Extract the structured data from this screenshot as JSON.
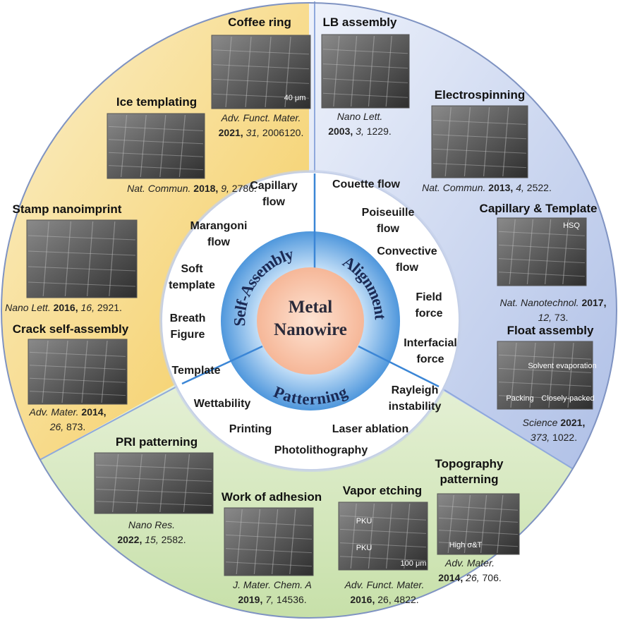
{
  "center": {
    "lines": [
      "Metal",
      "Nanowire"
    ]
  },
  "ring": {
    "self_assembly": "Self-Assembly",
    "alignment": "Alignment",
    "patterning": "Patterning"
  },
  "methods": [
    {
      "lines": [
        "Capillary",
        "flow"
      ]
    },
    {
      "lines": [
        "Couette flow"
      ]
    },
    {
      "lines": [
        "Marangoni",
        "flow"
      ]
    },
    {
      "lines": [
        "Poiseuille",
        "flow"
      ]
    },
    {
      "lines": [
        "Soft",
        "template"
      ]
    },
    {
      "lines": [
        "Convective",
        "flow"
      ]
    },
    {
      "lines": [
        "Breath",
        "Figure"
      ]
    },
    {
      "lines": [
        "Field",
        "force"
      ]
    },
    {
      "lines": [
        "Template"
      ]
    },
    {
      "lines": [
        "Interfacial",
        "force"
      ]
    },
    {
      "lines": [
        "Wettability"
      ]
    },
    {
      "lines": [
        "Rayleigh",
        "instability"
      ]
    },
    {
      "lines": [
        "Printing"
      ]
    },
    {
      "lines": [
        "Laser ablation"
      ]
    },
    {
      "lines": [
        "Photolithography"
      ]
    }
  ],
  "sections": [
    {
      "title": [
        "Coffee ring"
      ],
      "image_texts": [
        "40 μm"
      ],
      "citation": [
        [
          {
            "text": "Adv. Funct. Mater.",
            "style": "italic"
          }
        ],
        [
          {
            "text": "2021,",
            "style": "bold"
          },
          {
            "text": " 31,",
            "style": "italic"
          },
          {
            "text": " 2006120.",
            "style": "normal"
          }
        ]
      ]
    },
    {
      "title": [
        "Ice templating"
      ],
      "image_texts": [],
      "citation": [
        [
          {
            "text": "Nat. Commun.",
            "style": "italic"
          },
          {
            "text": " 2018,",
            "style": "bold"
          },
          {
            "text": " 9,",
            "style": "italic"
          },
          {
            "text": " 2786.",
            "style": "normal"
          }
        ]
      ]
    },
    {
      "title": [
        "Stamp nanoimprint"
      ],
      "image_texts": [],
      "citation": [
        [
          {
            "text": "Nano Lett.",
            "style": "italic"
          },
          {
            "text": " 2016,",
            "style": "bold"
          },
          {
            "text": " 16,",
            "style": "italic"
          },
          {
            "text": " 2921.",
            "style": "normal"
          }
        ]
      ]
    },
    {
      "title": [
        "Crack self-assembly"
      ],
      "image_texts": [],
      "citation": [
        [
          {
            "text": "Adv. Mater.",
            "style": "italic"
          },
          {
            "text": " 2014,",
            "style": "bold"
          }
        ],
        [
          {
            "text": "26,",
            "style": "italic"
          },
          {
            "text": " 873.",
            "style": "normal"
          }
        ]
      ]
    },
    {
      "title": [
        "LB assembly"
      ],
      "image_texts": [],
      "citation": [
        [
          {
            "text": "Nano Lett.",
            "style": "italic"
          }
        ],
        [
          {
            "text": "2003,",
            "style": "bold"
          },
          {
            "text": " 3,",
            "style": "italic"
          },
          {
            "text": " 1229.",
            "style": "normal"
          }
        ]
      ]
    },
    {
      "title": [
        "Electrospinning"
      ],
      "image_texts": [],
      "citation": [
        [
          {
            "text": "Nat. Commun.",
            "style": "italic"
          },
          {
            "text": " 2013,",
            "style": "bold"
          },
          {
            "text": " 4,",
            "style": "italic"
          },
          {
            "text": " 2522.",
            "style": "normal"
          }
        ]
      ]
    },
    {
      "title": [
        "Capillary & Template"
      ],
      "image_texts": [
        "HSQ"
      ],
      "citation": [
        [
          {
            "text": "Nat. Nanotechnol.",
            "style": "italic"
          },
          {
            "text": " 2017,",
            "style": "bold"
          }
        ],
        [
          {
            "text": "12,",
            "style": "italic"
          },
          {
            "text": " 73.",
            "style": "normal"
          }
        ]
      ]
    },
    {
      "title": [
        "Float assembly"
      ],
      "image_texts": [
        "Solvent evaporation",
        "Packing",
        "Closely-packed"
      ],
      "citation": [
        [
          {
            "text": "Science",
            "style": "italic"
          },
          {
            "text": " 2021,",
            "style": "bold"
          }
        ],
        [
          {
            "text": "373,",
            "style": "italic"
          },
          {
            "text": " 1022.",
            "style": "normal"
          }
        ]
      ]
    },
    {
      "title": [
        "PRI patterning"
      ],
      "image_texts": [],
      "citation": [
        [
          {
            "text": "Nano Res.",
            "style": "italic"
          }
        ],
        [
          {
            "text": "2022,",
            "style": "bold"
          },
          {
            "text": " 15,",
            "style": "italic"
          },
          {
            "text": " 2582.",
            "style": "normal"
          }
        ]
      ]
    },
    {
      "title": [
        "Work of adhesion"
      ],
      "image_texts": [],
      "citation": [
        [
          {
            "text": "J. Mater. Chem. A",
            "style": "italic"
          }
        ],
        [
          {
            "text": "2019,",
            "style": "bold"
          },
          {
            "text": " 7,",
            "style": "italic"
          },
          {
            "text": " 14536.",
            "style": "normal"
          }
        ]
      ]
    },
    {
      "title": [
        "Vapor etching"
      ],
      "image_texts": [
        "PKU",
        "PKU",
        "100 μm"
      ],
      "citation": [
        [
          {
            "text": "Adv. Funct. Mater.",
            "style": "italic"
          }
        ],
        [
          {
            "text": "2016,",
            "style": "bold"
          },
          {
            "text": " 26, 4822.",
            "style": "normal"
          }
        ]
      ]
    },
    {
      "title": [
        "Topography",
        "patterning"
      ],
      "image_texts": [
        "High σ&T"
      ],
      "citation": [
        [
          {
            "text": "Adv. Mater.",
            "style": "italic"
          }
        ],
        [
          {
            "text": "2014,",
            "style": "bold"
          },
          {
            "text": " 26,",
            "style": "italic"
          },
          {
            "text": " 706.",
            "style": "normal"
          }
        ]
      ]
    }
  ]
}
